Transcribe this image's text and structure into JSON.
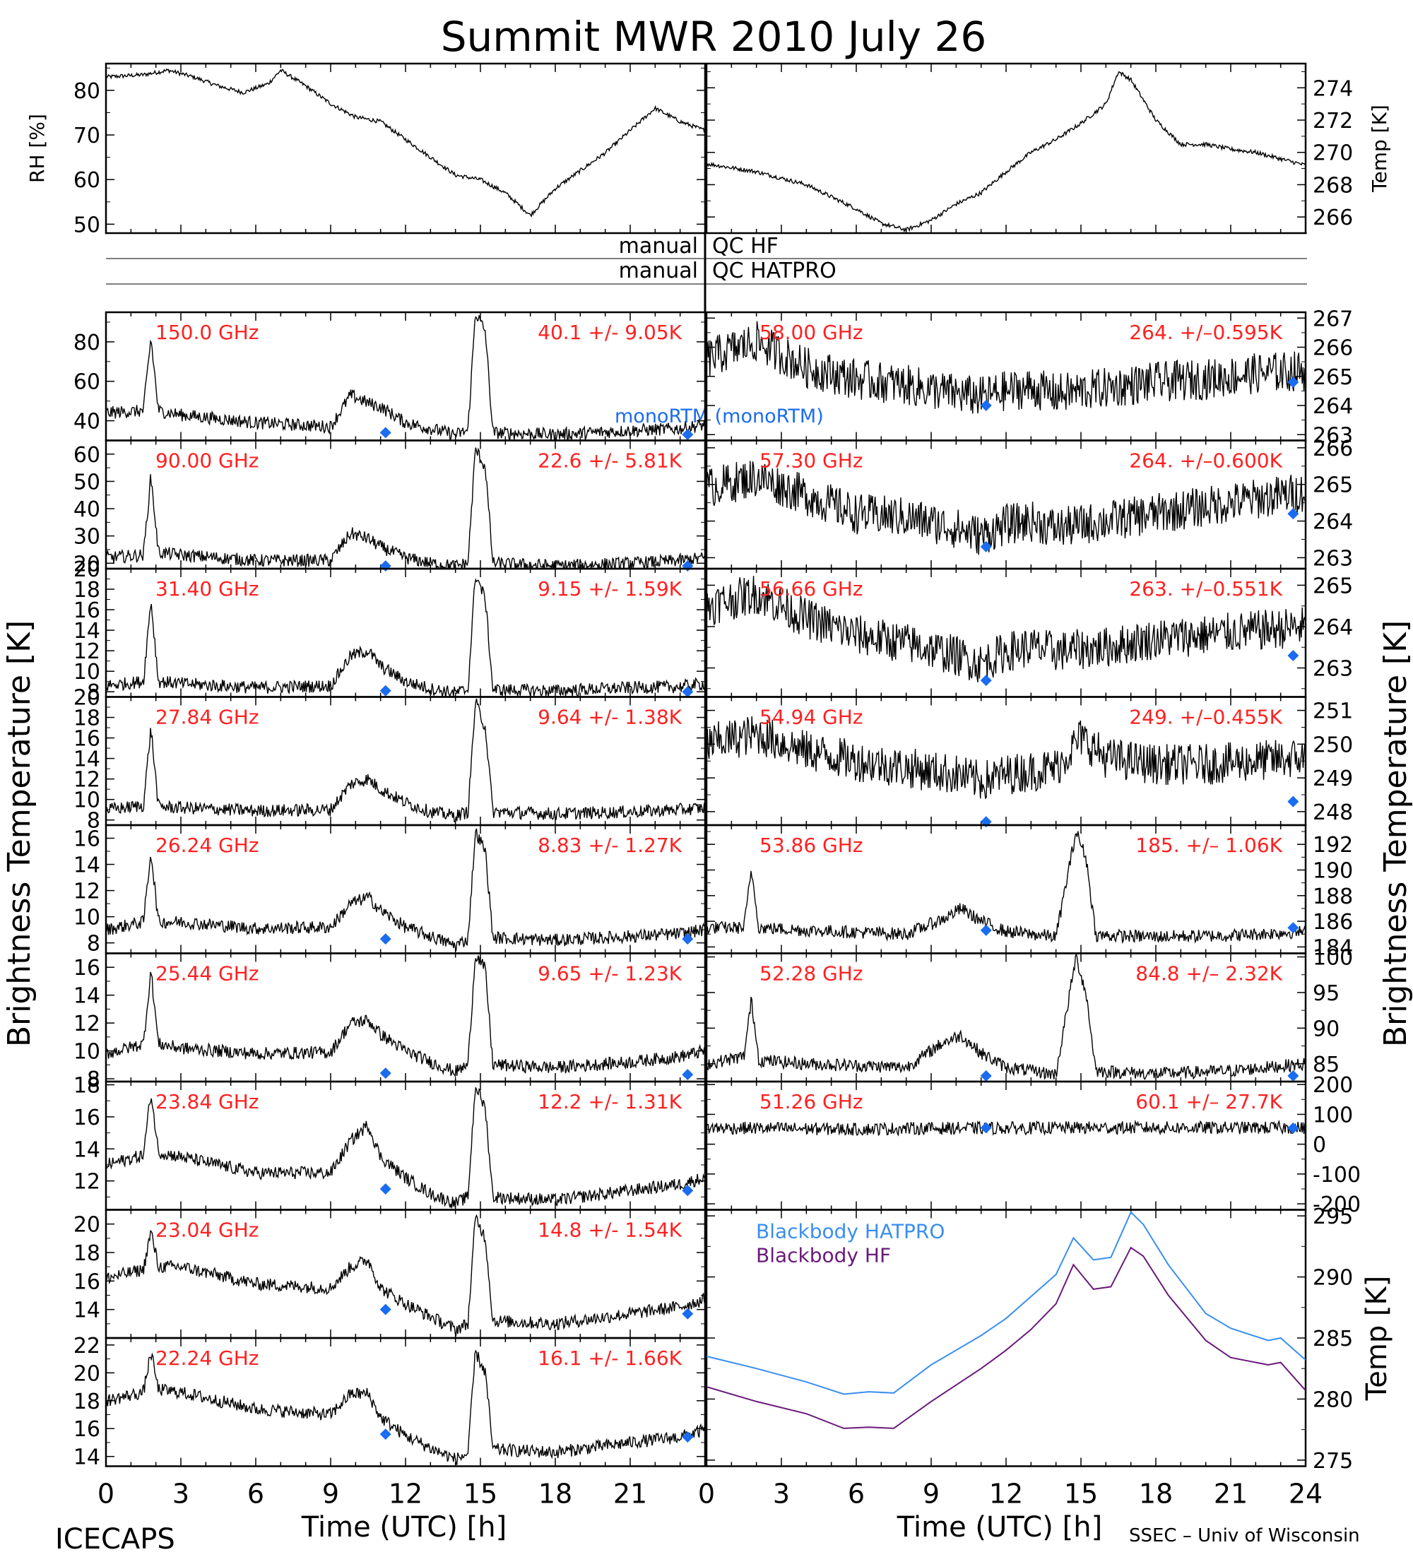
{
  "title": "Summit MWR 2010 July 26",
  "footer_left": "ICECAPS",
  "footer_right": "SSEC – Univ of Wisconsin",
  "xlabel": "Time (UTC) [h]",
  "left_ylabel": "Brightness Temperature [K]",
  "right_ylabel": "Brightness Temperature [K]",
  "x_ticks": [
    "0",
    "3",
    "6",
    "9",
    "12",
    "15",
    "18",
    "21"
  ],
  "x_ticks_right": [
    "0",
    "3",
    "6",
    "9",
    "12",
    "15",
    "18",
    "21",
    "24"
  ],
  "qc_rows": [
    {
      "label": "manual",
      "value": "QC HF"
    },
    {
      "label": "manual",
      "value": "QC HATPRO"
    }
  ],
  "legend_monortm": "monoRTM (monoRTM)",
  "colors": {
    "trace": "#000000",
    "annotation": "#ff2020",
    "model_marker": "#1a6cf0",
    "bb_hatpro": "#3a8ef0",
    "bb_hf": "#6a1a7a"
  },
  "chart_data": [
    {
      "type": "line",
      "panel": "rh",
      "ylabel": "RH [%]",
      "ylim": [
        48,
        86
      ],
      "yticks": [
        50,
        60,
        70,
        80
      ],
      "x": [
        0,
        1.5,
        2.5,
        3.5,
        4.5,
        5.5,
        6.5,
        7.0,
        8.0,
        9.0,
        10.0,
        11.0,
        12.0,
        13.0,
        14.0,
        15.0,
        16.0,
        17.0,
        18.0,
        19.0,
        20.0,
        21.0,
        22.0,
        23.0,
        24.0
      ],
      "y": [
        83,
        83.5,
        84.5,
        83,
        81,
        79.5,
        81.5,
        84.5,
        81,
        77,
        74,
        73,
        69,
        65,
        61,
        60,
        57,
        52,
        58,
        62,
        66,
        71,
        76,
        73,
        71
      ]
    },
    {
      "type": "line",
      "panel": "temp",
      "ylabel": "Temp [K]",
      "ylim": [
        265,
        275.5
      ],
      "yticks": [
        266,
        268,
        270,
        272,
        274
      ],
      "x": [
        0,
        2,
        4,
        6,
        7,
        8,
        9,
        10,
        11,
        12,
        13,
        14,
        15,
        16,
        16.5,
        17,
        18,
        19,
        20,
        21,
        22,
        23,
        24
      ],
      "y": [
        269.3,
        268.8,
        268,
        266.5,
        265.6,
        265.2,
        265.8,
        266.8,
        267.5,
        268.8,
        270,
        270.8,
        271.8,
        273,
        275,
        274.5,
        272,
        270.5,
        270.5,
        270.2,
        270,
        269.6,
        269.2
      ]
    },
    {
      "type": "line",
      "channel": "150.0 GHz",
      "stats": "40.1 +/-  9.05K",
      "ylim": [
        30,
        95
      ],
      "yticks": [
        40,
        60,
        80
      ],
      "x": [
        0,
        1.5,
        1.8,
        2.1,
        3,
        6,
        9,
        9.8,
        10.5,
        11,
        12,
        13,
        14,
        14.5,
        14.8,
        15.2,
        15.5,
        18,
        21,
        23,
        24
      ],
      "y": [
        44,
        45,
        82,
        45,
        43,
        39,
        37,
        53,
        49,
        47,
        39,
        36,
        33,
        35,
        95,
        85,
        34,
        33,
        35,
        36,
        38
      ],
      "model": [
        {
          "x": 11.2,
          "y": 34
        },
        {
          "x": 23.3,
          "y": 33
        }
      ]
    },
    {
      "type": "line",
      "channel": "90.00 GHz",
      "stats": "22.6 +/-  5.81K",
      "ylim": [
        18,
        65
      ],
      "yticks": [
        20,
        30,
        40,
        50,
        60
      ],
      "x": [
        0,
        1.5,
        1.8,
        2.1,
        3,
        6,
        9,
        9.8,
        10.5,
        11,
        12,
        13,
        14,
        14.5,
        14.8,
        15.2,
        15.5,
        18,
        21,
        23,
        24
      ],
      "y": [
        22,
        23,
        52,
        24,
        23,
        21,
        21,
        31,
        29,
        26,
        22,
        20,
        19,
        20,
        62,
        55,
        20,
        19,
        20,
        21,
        22
      ],
      "model": [
        {
          "x": 11.2,
          "y": 19
        },
        {
          "x": 23.3,
          "y": 19
        }
      ]
    },
    {
      "type": "line",
      "channel": "31.40 GHz",
      "stats": "9.15 +/- 1.59K",
      "ylim": [
        7.5,
        20
      ],
      "yticks": [
        8,
        10,
        12,
        14,
        16,
        18,
        20
      ],
      "x": [
        0,
        1.5,
        1.8,
        2.1,
        3,
        6,
        9,
        9.8,
        10.5,
        11,
        12,
        13,
        14,
        14.5,
        14.8,
        15.2,
        15.5,
        18,
        21,
        23,
        24
      ],
      "y": [
        8.6,
        9,
        17,
        9,
        8.8,
        8.4,
        8.6,
        11.5,
        12,
        10.5,
        9,
        8.3,
        7.9,
        8.2,
        19.5,
        17,
        8.2,
        8.1,
        8.4,
        8.5,
        8.8
      ],
      "model": [
        {
          "x": 11.2,
          "y": 8.1
        },
        {
          "x": 23.3,
          "y": 8
        }
      ]
    },
    {
      "type": "line",
      "channel": "27.84 GHz",
      "stats": "9.64 +/- 1.38K",
      "ylim": [
        7.5,
        20
      ],
      "yticks": [
        8,
        10,
        12,
        14,
        16,
        18,
        20
      ],
      "x": [
        0,
        1.5,
        1.8,
        2.1,
        3,
        6,
        9,
        9.8,
        10.5,
        11,
        12,
        13,
        14,
        14.5,
        14.8,
        15.2,
        15.5,
        18,
        21,
        23,
        24
      ],
      "y": [
        9,
        9.4,
        17,
        9.3,
        9.2,
        8.9,
        9,
        11.5,
        12,
        11,
        9.7,
        8.8,
        8.4,
        8.8,
        19.5,
        17,
        8.8,
        8.6,
        8.8,
        9,
        9.2
      ],
      "model": []
    },
    {
      "type": "line",
      "channel": "26.24 GHz",
      "stats": "8.83 +/- 1.27K",
      "ylim": [
        7.2,
        17
      ],
      "yticks": [
        8,
        10,
        12,
        14,
        16
      ],
      "x": [
        0,
        1.5,
        1.8,
        2.1,
        3,
        6,
        9,
        9.8,
        10.5,
        11,
        12,
        13,
        14,
        14.5,
        14.8,
        15.2,
        15.5,
        18,
        21,
        23,
        24
      ],
      "y": [
        9,
        9.6,
        15,
        9.6,
        9.6,
        9.1,
        9.2,
        11,
        11.5,
        10.5,
        9.2,
        8.5,
        7.8,
        8.3,
        16.5,
        15,
        8.4,
        8.2,
        8.5,
        8.7,
        9
      ],
      "model": [
        {
          "x": 11.2,
          "y": 8.3
        },
        {
          "x": 23.3,
          "y": 8.3
        }
      ]
    },
    {
      "type": "line",
      "channel": "25.44 GHz",
      "stats": "9.65 +/- 1.23K",
      "ylim": [
        7.8,
        17
      ],
      "yticks": [
        8,
        10,
        12,
        14,
        16
      ],
      "x": [
        0,
        1.5,
        1.8,
        2.1,
        3,
        6,
        9,
        9.8,
        10.5,
        11,
        12,
        13,
        14,
        14.5,
        14.8,
        15.2,
        15.5,
        18,
        21,
        23,
        24
      ],
      "y": [
        9.8,
        10.5,
        15.8,
        10.5,
        10.2,
        9.8,
        9.9,
        12,
        12.2,
        11.2,
        10,
        9.2,
        8.5,
        9,
        17,
        15.8,
        9,
        8.8,
        9.2,
        9.6,
        10
      ],
      "model": [
        {
          "x": 11.2,
          "y": 8.4
        },
        {
          "x": 23.3,
          "y": 8.3
        }
      ]
    },
    {
      "type": "line",
      "channel": "23.84 GHz",
      "stats": "12.2 +/- 1.31K",
      "ylim": [
        10.2,
        18.2
      ],
      "yticks": [
        12,
        14,
        16,
        18
      ],
      "x": [
        0,
        1.5,
        1.8,
        2.1,
        3,
        6,
        9,
        9.8,
        10.5,
        11,
        12,
        13,
        14,
        14.5,
        14.8,
        15.2,
        15.5,
        18,
        21,
        23,
        24
      ],
      "y": [
        13,
        13.6,
        17.5,
        13.8,
        13.5,
        12.5,
        12.5,
        14.5,
        15.5,
        13.5,
        12.2,
        11.2,
        10.6,
        11,
        18,
        16.5,
        11,
        10.8,
        11.4,
        11.8,
        12.2
      ],
      "model": [
        {
          "x": 11.2,
          "y": 11.5
        },
        {
          "x": 23.3,
          "y": 11.4
        }
      ]
    },
    {
      "type": "line",
      "channel": "23.04 GHz",
      "stats": "14.8 +/- 1.54K",
      "ylim": [
        12,
        21
      ],
      "yticks": [
        14,
        16,
        18,
        20
      ],
      "x": [
        0,
        1.5,
        1.8,
        2.1,
        3,
        6,
        9,
        9.8,
        10.5,
        11,
        12,
        13,
        14,
        14.5,
        14.8,
        15.2,
        15.5,
        18,
        21,
        23,
        24
      ],
      "y": [
        16.2,
        16.8,
        19.5,
        17,
        17,
        15.8,
        15.5,
        17,
        17.5,
        15.5,
        14.4,
        13.5,
        12.6,
        13,
        20.5,
        19,
        13.2,
        13,
        13.7,
        14.2,
        14.7
      ],
      "model": [
        {
          "x": 11.2,
          "y": 14
        },
        {
          "x": 23.3,
          "y": 13.7
        }
      ]
    },
    {
      "type": "line",
      "channel": "22.24 GHz",
      "stats": "16.1 +/- 1.66K",
      "ylim": [
        13.3,
        22.5
      ],
      "yticks": [
        14,
        16,
        18,
        20,
        22
      ],
      "x": [
        0,
        1.5,
        1.8,
        2.1,
        3,
        6,
        9,
        9.8,
        10.5,
        11,
        12,
        13,
        14,
        14.5,
        14.8,
        15.2,
        15.5,
        18,
        21,
        23,
        24
      ],
      "y": [
        18,
        18.6,
        21.5,
        18.8,
        18.6,
        17.4,
        17,
        18.5,
        18.5,
        16.8,
        15.5,
        14.6,
        13.8,
        14.2,
        21.5,
        20,
        14.5,
        14.3,
        15,
        15.4,
        15.9
      ],
      "model": [
        {
          "x": 11.2,
          "y": 15.6
        },
        {
          "x": 23.3,
          "y": 15.4
        }
      ]
    },
    {
      "type": "line",
      "channel": "58.00 GHz",
      "stats": "264. +/–0.595K",
      "ylim": [
        262.8,
        267.2
      ],
      "yticks": [
        263,
        264,
        265,
        266,
        267
      ],
      "x": [
        0,
        2,
        4,
        6,
        8,
        10,
        11,
        12,
        13,
        14,
        16,
        18,
        20,
        22,
        24
      ],
      "y": [
        265.6,
        266.2,
        265.3,
        264.9,
        264.7,
        264.4,
        264.3,
        264.5,
        264.6,
        264.4,
        264.6,
        264.8,
        264.9,
        265.1,
        265.2
      ],
      "model": [
        {
          "x": 11.2,
          "y": 264
        },
        {
          "x": 23.5,
          "y": 264.8
        }
      ]
    },
    {
      "type": "line",
      "channel": "57.30 GHz",
      "stats": "264. +/–0.600K",
      "ylim": [
        262.7,
        266.2
      ],
      "yticks": [
        263,
        264,
        265,
        266
      ],
      "x": [
        0,
        2,
        4,
        6,
        8,
        10,
        11,
        12,
        13,
        14,
        16,
        18,
        20,
        22,
        24
      ],
      "y": [
        264.9,
        265.2,
        264.7,
        264.2,
        264.1,
        263.8,
        263.6,
        263.9,
        264,
        263.8,
        264,
        264.2,
        264.4,
        264.6,
        264.8
      ],
      "model": [
        {
          "x": 11.2,
          "y": 263.3
        },
        {
          "x": 23.5,
          "y": 264.2
        }
      ]
    },
    {
      "type": "line",
      "channel": "56.66 GHz",
      "stats": "263. +/–0.551K",
      "ylim": [
        262.3,
        265.4
      ],
      "yticks": [
        263,
        264,
        265
      ],
      "x": [
        0,
        2,
        4,
        6,
        8,
        10,
        11,
        12,
        13,
        14,
        16,
        18,
        20,
        22,
        24
      ],
      "y": [
        264.5,
        264.8,
        264.2,
        263.8,
        263.6,
        263.3,
        263.1,
        263.4,
        263.5,
        263.4,
        263.5,
        263.7,
        263.8,
        263.9,
        264
      ],
      "model": [
        {
          "x": 11.2,
          "y": 262.7
        },
        {
          "x": 23.5,
          "y": 263.3
        }
      ]
    },
    {
      "type": "line",
      "channel": "54.94 GHz",
      "stats": "249. +/–0.455K",
      "ylim": [
        247.6,
        251.4
      ],
      "yticks": [
        248,
        249,
        250,
        251
      ],
      "x": [
        0,
        2,
        4,
        6,
        8,
        10,
        11,
        12,
        13,
        14,
        15,
        16,
        18,
        20,
        22,
        24
      ],
      "y": [
        250,
        250.3,
        249.8,
        249.5,
        249.3,
        249.1,
        248.9,
        249.1,
        249.2,
        249.3,
        250.2,
        249.6,
        249.4,
        249.4,
        249.5,
        249.6
      ],
      "model": [
        {
          "x": 11.2,
          "y": 247.7
        },
        {
          "x": 23.5,
          "y": 248.3
        }
      ]
    },
    {
      "type": "line",
      "channel": "53.86 GHz",
      "stats": "185. +/–  1.06K",
      "ylim": [
        183.5,
        193.5
      ],
      "yticks": [
        184,
        186,
        188,
        190,
        192
      ],
      "x": [
        0,
        1.5,
        1.8,
        2.1,
        4,
        8,
        9.5,
        10.2,
        11,
        12,
        14,
        14.8,
        15.2,
        15.6,
        18,
        21,
        24
      ],
      "y": [
        185.5,
        185.5,
        190,
        185.5,
        185.3,
        185,
        186.2,
        187,
        186,
        185.2,
        184.8,
        193,
        191,
        184.9,
        184.8,
        184.9,
        185.2
      ],
      "model": [
        {
          "x": 11.2,
          "y": 185.3
        },
        {
          "x": 23.5,
          "y": 185.5
        }
      ]
    },
    {
      "type": "line",
      "channel": "52.28 GHz",
      "stats": "84.8 +/–  2.32K",
      "ylim": [
        82.5,
        100.5
      ],
      "yticks": [
        85,
        90,
        95,
        100
      ],
      "x": [
        0,
        1.5,
        1.8,
        2.1,
        4,
        8,
        9.5,
        10.2,
        11,
        12,
        14,
        14.8,
        15.2,
        15.6,
        18,
        21,
        24
      ],
      "y": [
        85,
        86,
        94,
        85.5,
        85,
        84.5,
        88,
        89,
        86.5,
        84.5,
        83.5,
        100,
        95,
        84,
        83.6,
        84,
        85
      ],
      "model": [
        {
          "x": 11.2,
          "y": 83.3
        },
        {
          "x": 23.5,
          "y": 83.3
        }
      ]
    },
    {
      "type": "line",
      "channel": "51.26 GHz",
      "stats": "60.1 +/–  27.7K",
      "ylim": [
        -220,
        210
      ],
      "yticks": [
        -200,
        -100,
        0,
        100,
        200
      ],
      "x": [
        0,
        4,
        6,
        8,
        12,
        13,
        14,
        16,
        20,
        24
      ],
      "y": [
        55,
        52,
        50,
        53,
        54,
        54,
        55,
        55,
        55,
        55
      ],
      "model": [
        {
          "x": 11.2,
          "y": 55
        },
        {
          "x": 23.5,
          "y": 54
        }
      ]
    },
    {
      "type": "line",
      "panel": "blackbody",
      "ylabel": "Temp [K]",
      "ylim": [
        274.5,
        295.5
      ],
      "yticks": [
        275,
        280,
        285,
        290,
        295
      ],
      "series": [
        {
          "name": "Blackbody HATPRO",
          "x": [
            0,
            2,
            4,
            5.5,
            6.5,
            7.5,
            9,
            11,
            12,
            13,
            14,
            14.7,
            15.5,
            16.2,
            17,
            17.5,
            18.5,
            20,
            21,
            22.5,
            23,
            24
          ],
          "y": [
            283.5,
            282.5,
            281.4,
            280.4,
            280.6,
            280.5,
            282.8,
            285.2,
            286.6,
            288.4,
            290.2,
            293.2,
            291.4,
            291.6,
            295.3,
            294.3,
            291,
            287,
            285.8,
            284.8,
            285,
            283.2
          ]
        },
        {
          "name": "Blackbody HF",
          "x": [
            0,
            2,
            4,
            5.5,
            6.5,
            7.5,
            9,
            11,
            12,
            13,
            14,
            14.7,
            15.5,
            16.2,
            17,
            17.5,
            18.5,
            20,
            21,
            22.5,
            23,
            24
          ],
          "y": [
            281,
            279.8,
            278.8,
            277.6,
            277.7,
            277.6,
            279.8,
            282.5,
            284,
            285.7,
            287.8,
            291,
            289,
            289.2,
            292.4,
            291.7,
            288.5,
            284.8,
            283.4,
            282.8,
            283,
            280.7
          ]
        }
      ]
    }
  ]
}
